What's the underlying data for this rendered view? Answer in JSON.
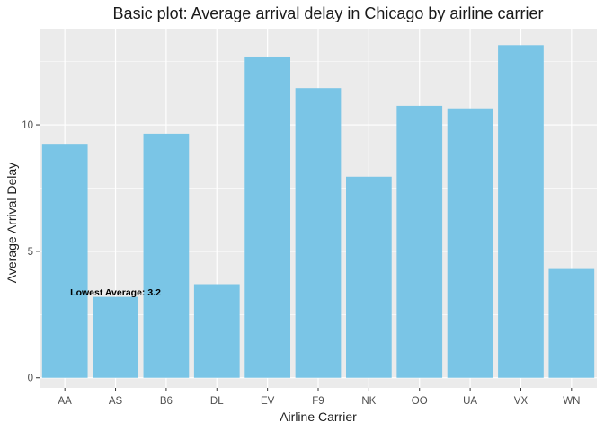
{
  "chart_data": {
    "type": "bar",
    "title": "Basic plot: Average arrival delay in Chicago by airline carrier",
    "xlabel": "Airline Carrier",
    "ylabel": "Average Arrival Delay",
    "categories": [
      "AA",
      "AS",
      "B6",
      "DL",
      "EV",
      "F9",
      "NK",
      "OO",
      "UA",
      "VX",
      "WN"
    ],
    "values": [
      9.25,
      3.2,
      9.65,
      3.7,
      12.7,
      11.45,
      7.95,
      10.75,
      10.65,
      13.15,
      4.3
    ],
    "ylim": [
      -0.4,
      13.8
    ],
    "yticks": [
      0,
      5,
      10
    ],
    "grid": true,
    "legend": "none",
    "bar_color": "#7AC5E6",
    "panel_background": "#EBEBEB",
    "grid_color": "#FFFFFF",
    "annotation": {
      "text": "Lowest Average: 3.2",
      "x_category": "AS",
      "y": 3.4
    }
  }
}
